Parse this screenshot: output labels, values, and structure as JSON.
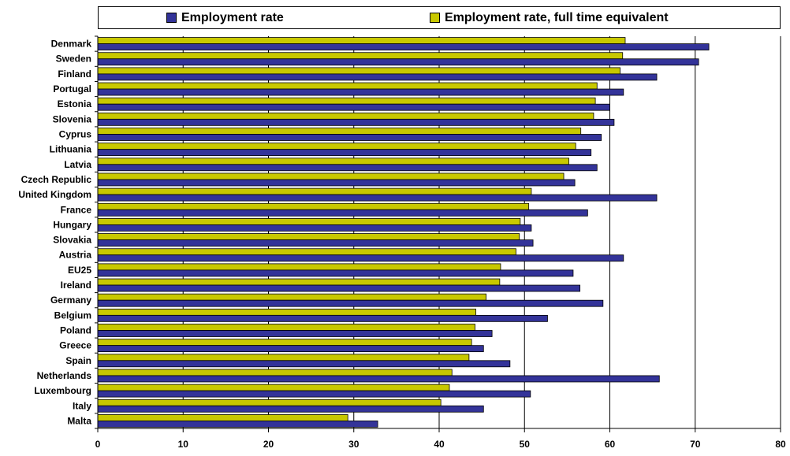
{
  "chart_data": {
    "type": "bar",
    "orientation": "horizontal",
    "categories": [
      "Denmark",
      "Sweden",
      "Finland",
      "Portugal",
      "Estonia",
      "Slovenia",
      "Cyprus",
      "Lithuania",
      "Latvia",
      "Czech Republic",
      "United Kingdom",
      "France",
      "Hungary",
      "Slovakia",
      "Austria",
      "EU25",
      "Ireland",
      "Germany",
      "Belgium",
      "Poland",
      "Greece",
      "Spain",
      "Netherlands",
      "Luxembourg",
      "Italy",
      "Malta"
    ],
    "series": [
      {
        "name": "Employment rate, full time equivalent",
        "color": "#c8c800",
        "values": [
          61.8,
          61.5,
          61.2,
          58.5,
          58.3,
          58.1,
          56.6,
          56.0,
          55.2,
          54.6,
          50.8,
          50.5,
          49.5,
          49.4,
          49.0,
          47.2,
          47.1,
          45.5,
          44.3,
          44.2,
          43.8,
          43.5,
          41.5,
          41.2,
          40.2,
          29.3
        ]
      },
      {
        "name": "Employment rate",
        "color": "#333399",
        "values": [
          71.6,
          70.4,
          65.5,
          61.6,
          60.0,
          60.5,
          59.0,
          57.8,
          58.5,
          55.9,
          65.5,
          57.4,
          50.8,
          51.0,
          61.6,
          55.7,
          56.5,
          59.2,
          52.7,
          46.2,
          45.2,
          48.3,
          65.8,
          50.7,
          45.2,
          32.8
        ]
      }
    ],
    "legend": {
      "placement": "top",
      "order": [
        "Employment rate",
        "Employment rate, full time equivalent"
      ]
    },
    "xticks": [
      "0",
      "10",
      "20",
      "30",
      "40",
      "50",
      "60",
      "70",
      "80"
    ],
    "xlim": [
      0,
      80
    ],
    "grid": "vertical"
  }
}
